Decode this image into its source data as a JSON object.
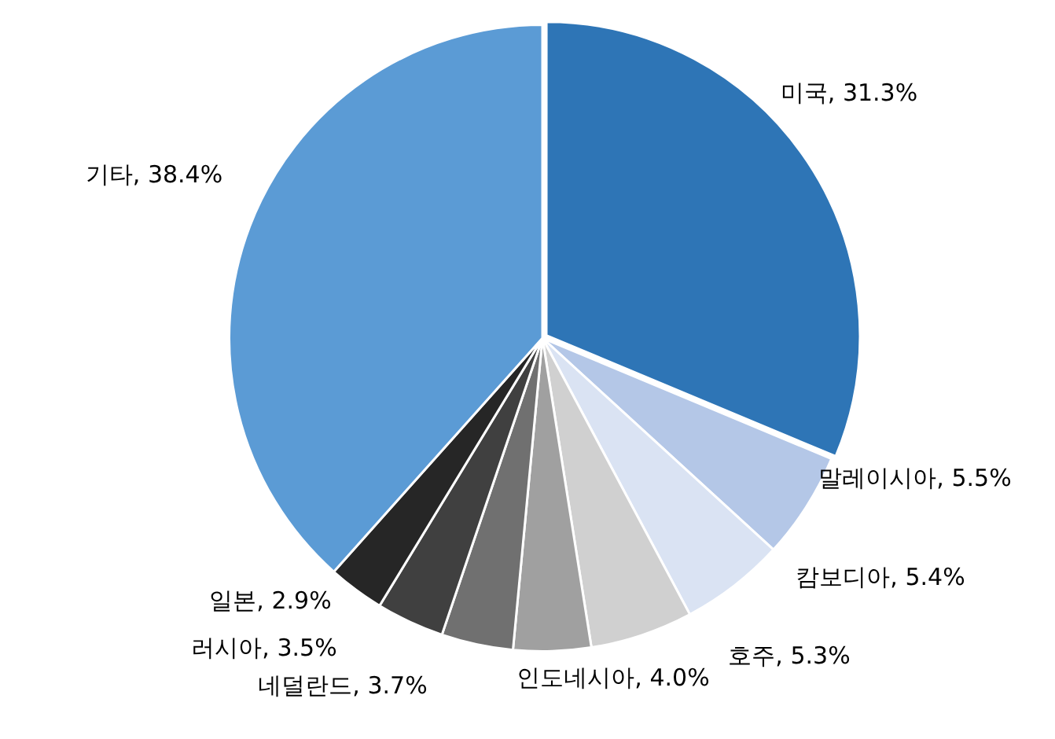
{
  "chart_data": {
    "type": "pie",
    "categories": [
      "미국",
      "말레이시아",
      "캄보디아",
      "호주",
      "인도네시아",
      "네덜란드",
      "러시아",
      "일본",
      "기타"
    ],
    "values": [
      31.3,
      5.5,
      5.4,
      5.3,
      4.0,
      3.7,
      3.5,
      2.9,
      38.4
    ],
    "value_labels": [
      "31.3%",
      "5.5%",
      "5.4%",
      "5.3%",
      "4.0%",
      "3.7%",
      "3.5%",
      "2.9%",
      "38.4%"
    ],
    "colors": [
      "#2e75b6",
      "#b4c7e7",
      "#dae3f3",
      "#d0d0d0",
      "#a0a0a0",
      "#707070",
      "#404040",
      "#262626",
      "#5b9bd5"
    ],
    "legend": false
  }
}
